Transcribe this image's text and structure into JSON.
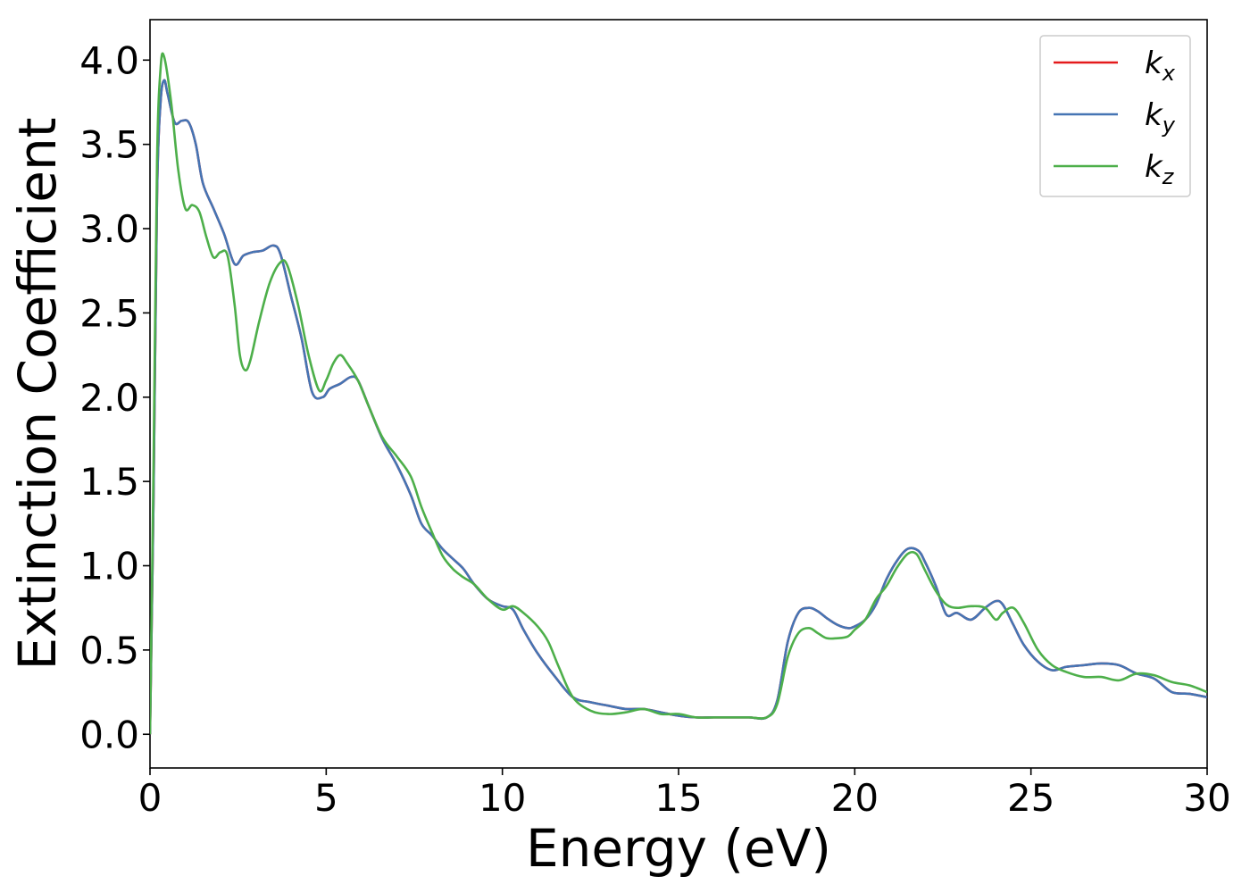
{
  "chart_data": {
    "type": "line",
    "xlabel": "Energy (eV)",
    "ylabel": "Extinction Coefficient",
    "xlim": [
      0,
      30
    ],
    "ylim": [
      -0.2,
      4.24
    ],
    "xticks": [
      0,
      5,
      10,
      15,
      20,
      25,
      30
    ],
    "xtick_labels": [
      "0",
      "5",
      "10",
      "15",
      "20",
      "25",
      "30"
    ],
    "yticks": [
      0.0,
      0.5,
      1.0,
      1.5,
      2.0,
      2.5,
      3.0,
      3.5,
      4.0
    ],
    "ytick_labels": [
      "0.0",
      "0.5",
      "1.0",
      "1.5",
      "2.0",
      "2.5",
      "3.0",
      "3.5",
      "4.0"
    ],
    "grid": false,
    "legend_position": "top-right",
    "series": [
      {
        "name": "k",
        "subscript": "x",
        "color": "#e41a1c",
        "x": [
          0,
          0.1,
          0.2,
          0.3,
          0.4,
          0.5,
          0.7,
          0.9,
          1.1,
          1.3,
          1.5,
          1.8,
          2.1,
          2.4,
          2.65,
          2.9,
          3.2,
          3.5,
          3.7,
          4.0,
          4.3,
          4.6,
          4.9,
          5.1,
          5.4,
          5.7,
          5.9,
          6.2,
          6.6,
          7.0,
          7.4,
          7.7,
          8.0,
          8.3,
          8.6,
          8.9,
          9.2,
          9.6,
          10.0,
          10.3,
          10.6,
          11.0,
          11.5,
          12.0,
          12.5,
          13.0,
          13.5,
          14.0,
          14.5,
          15.0,
          15.5,
          16.0,
          16.5,
          17.0,
          17.5,
          17.8,
          18.1,
          18.4,
          18.7,
          18.95,
          19.2,
          19.5,
          19.8,
          20.0,
          20.3,
          20.6,
          20.9,
          21.2,
          21.5,
          21.8,
          22.0,
          22.3,
          22.6,
          22.9,
          23.3,
          23.7,
          24.0,
          24.2,
          24.5,
          24.8,
          25.2,
          25.6,
          26.0,
          26.5,
          27.0,
          27.5,
          28.0,
          28.5,
          29.0,
          29.5,
          30.0
        ],
        "y": [
          0.0,
          1.4,
          3.2,
          3.75,
          3.88,
          3.8,
          3.63,
          3.64,
          3.63,
          3.5,
          3.27,
          3.12,
          2.97,
          2.79,
          2.84,
          2.86,
          2.87,
          2.9,
          2.85,
          2.6,
          2.35,
          2.03,
          2.0,
          2.05,
          2.08,
          2.12,
          2.1,
          1.95,
          1.75,
          1.6,
          1.42,
          1.25,
          1.18,
          1.1,
          1.04,
          0.98,
          0.89,
          0.8,
          0.76,
          0.74,
          0.62,
          0.48,
          0.34,
          0.22,
          0.19,
          0.17,
          0.15,
          0.15,
          0.13,
          0.11,
          0.1,
          0.1,
          0.1,
          0.1,
          0.1,
          0.2,
          0.55,
          0.72,
          0.75,
          0.73,
          0.69,
          0.65,
          0.63,
          0.64,
          0.68,
          0.77,
          0.92,
          1.03,
          1.1,
          1.09,
          1.02,
          0.88,
          0.71,
          0.72,
          0.68,
          0.75,
          0.79,
          0.77,
          0.65,
          0.53,
          0.43,
          0.38,
          0.4,
          0.41,
          0.42,
          0.41,
          0.36,
          0.33,
          0.25,
          0.24,
          0.22
        ]
      },
      {
        "name": "k",
        "subscript": "y",
        "color": "#4575b4",
        "x": [
          0,
          0.1,
          0.2,
          0.3,
          0.4,
          0.5,
          0.7,
          0.9,
          1.1,
          1.3,
          1.5,
          1.8,
          2.1,
          2.4,
          2.65,
          2.9,
          3.2,
          3.5,
          3.7,
          4.0,
          4.3,
          4.6,
          4.9,
          5.1,
          5.4,
          5.7,
          5.9,
          6.2,
          6.6,
          7.0,
          7.4,
          7.7,
          8.0,
          8.3,
          8.6,
          8.9,
          9.2,
          9.6,
          10.0,
          10.3,
          10.6,
          11.0,
          11.5,
          12.0,
          12.5,
          13.0,
          13.5,
          14.0,
          14.5,
          15.0,
          15.5,
          16.0,
          16.5,
          17.0,
          17.5,
          17.8,
          18.1,
          18.4,
          18.7,
          18.95,
          19.2,
          19.5,
          19.8,
          20.0,
          20.3,
          20.6,
          20.9,
          21.2,
          21.5,
          21.8,
          22.0,
          22.3,
          22.6,
          22.9,
          23.3,
          23.7,
          24.0,
          24.2,
          24.5,
          24.8,
          25.2,
          25.6,
          26.0,
          26.5,
          27.0,
          27.5,
          28.0,
          28.5,
          29.0,
          29.5,
          30.0
        ],
        "y": [
          0.0,
          1.4,
          3.2,
          3.75,
          3.88,
          3.8,
          3.63,
          3.64,
          3.63,
          3.5,
          3.27,
          3.12,
          2.97,
          2.79,
          2.84,
          2.86,
          2.87,
          2.9,
          2.85,
          2.6,
          2.35,
          2.03,
          2.0,
          2.05,
          2.08,
          2.12,
          2.1,
          1.95,
          1.75,
          1.6,
          1.42,
          1.25,
          1.18,
          1.1,
          1.04,
          0.98,
          0.89,
          0.8,
          0.76,
          0.74,
          0.62,
          0.48,
          0.34,
          0.22,
          0.19,
          0.17,
          0.15,
          0.15,
          0.13,
          0.11,
          0.1,
          0.1,
          0.1,
          0.1,
          0.1,
          0.2,
          0.55,
          0.72,
          0.75,
          0.73,
          0.69,
          0.65,
          0.63,
          0.64,
          0.68,
          0.77,
          0.92,
          1.03,
          1.1,
          1.09,
          1.02,
          0.88,
          0.71,
          0.72,
          0.68,
          0.75,
          0.79,
          0.77,
          0.65,
          0.53,
          0.43,
          0.38,
          0.4,
          0.41,
          0.42,
          0.41,
          0.36,
          0.33,
          0.25,
          0.24,
          0.22
        ]
      },
      {
        "name": "k",
        "subscript": "z",
        "color": "#4daf4a",
        "x": [
          0,
          0.1,
          0.2,
          0.3,
          0.4,
          0.6,
          0.8,
          1.0,
          1.2,
          1.4,
          1.6,
          1.8,
          2.0,
          2.2,
          2.4,
          2.55,
          2.7,
          2.85,
          3.1,
          3.4,
          3.7,
          3.9,
          4.2,
          4.5,
          4.8,
          5.0,
          5.2,
          5.4,
          5.6,
          5.9,
          6.2,
          6.6,
          7.0,
          7.4,
          7.7,
          8.0,
          8.3,
          8.6,
          8.9,
          9.2,
          9.6,
          10.0,
          10.3,
          10.6,
          11.0,
          11.3,
          11.6,
          12.0,
          12.5,
          13.0,
          13.5,
          14.0,
          14.5,
          15.0,
          15.5,
          16.0,
          16.5,
          17.0,
          17.5,
          17.8,
          18.1,
          18.4,
          18.7,
          18.95,
          19.2,
          19.5,
          19.8,
          20.0,
          20.3,
          20.6,
          20.9,
          21.2,
          21.5,
          21.75,
          22.0,
          22.3,
          22.6,
          22.9,
          23.3,
          23.7,
          24.0,
          24.2,
          24.5,
          24.8,
          25.2,
          25.6,
          26.0,
          26.5,
          27.0,
          27.5,
          28.0,
          28.5,
          29.0,
          29.5,
          30.0
        ],
        "y": [
          0.0,
          1.6,
          3.4,
          3.95,
          4.02,
          3.75,
          3.35,
          3.12,
          3.14,
          3.1,
          2.95,
          2.83,
          2.86,
          2.84,
          2.55,
          2.25,
          2.16,
          2.22,
          2.45,
          2.68,
          2.8,
          2.78,
          2.55,
          2.25,
          2.04,
          2.1,
          2.2,
          2.25,
          2.2,
          2.1,
          1.95,
          1.76,
          1.65,
          1.53,
          1.35,
          1.2,
          1.06,
          0.98,
          0.93,
          0.89,
          0.8,
          0.74,
          0.76,
          0.72,
          0.64,
          0.55,
          0.4,
          0.22,
          0.14,
          0.12,
          0.13,
          0.15,
          0.12,
          0.12,
          0.1,
          0.1,
          0.1,
          0.1,
          0.1,
          0.18,
          0.46,
          0.6,
          0.63,
          0.6,
          0.57,
          0.57,
          0.58,
          0.62,
          0.68,
          0.8,
          0.88,
          0.99,
          1.07,
          1.07,
          0.97,
          0.85,
          0.77,
          0.75,
          0.76,
          0.75,
          0.68,
          0.72,
          0.75,
          0.66,
          0.5,
          0.41,
          0.37,
          0.34,
          0.34,
          0.32,
          0.36,
          0.35,
          0.31,
          0.29,
          0.25
        ]
      }
    ]
  }
}
